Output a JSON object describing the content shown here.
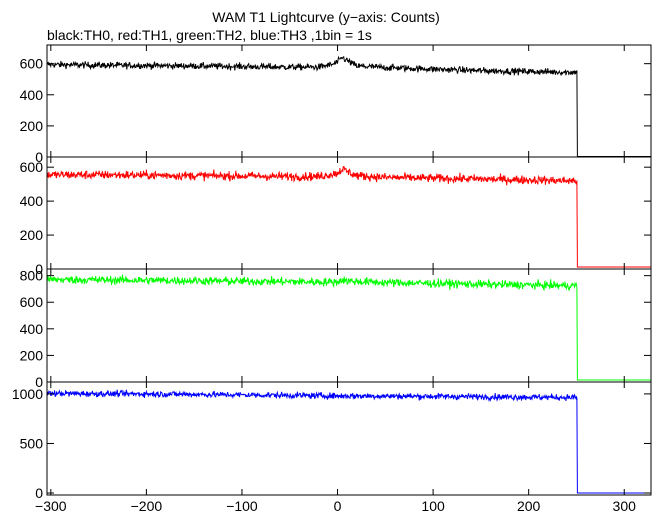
{
  "chart_data": {
    "type": "line",
    "title": "WAM T1 Lightcurve (y−axis: Counts)",
    "subtitle": "black:TH0, red:TH1, green:TH2, blue:TH3 ,1bin = 1s",
    "xlabel": "",
    "ylabel": "",
    "xlim": [
      -304,
      328
    ],
    "x_ticks": [
      -300,
      -200,
      -100,
      0,
      100,
      200,
      300
    ],
    "x_tick_labels": [
      "−300",
      "−200",
      "−100",
      "0",
      "100",
      "200",
      "300"
    ],
    "grid": false,
    "panels": [
      {
        "series": "TH0",
        "color": "#000000",
        "ylim": [
          0,
          720
        ],
        "y_ticks": [
          0,
          200,
          400,
          600
        ],
        "y_tick_labels": [
          "0",
          "200",
          "400",
          "600"
        ],
        "trend": {
          "x": [
            -304,
            -250,
            -200,
            -150,
            -100,
            -50,
            -20,
            -5,
            0,
            5,
            10,
            20,
            50,
            100,
            150,
            200,
            240,
            251
          ],
          "y": [
            595,
            590,
            588,
            585,
            582,
            578,
            578,
            595,
            610,
            640,
            620,
            585,
            575,
            565,
            555,
            550,
            545,
            545
          ]
        },
        "noise": 15,
        "drop_at": 251,
        "after_value": 3
      },
      {
        "series": "TH1",
        "color": "#ff0000",
        "ylim": [
          0,
          660
        ],
        "y_ticks": [
          0,
          200,
          400,
          600
        ],
        "y_tick_labels": [
          "0",
          "200",
          "400",
          "600"
        ],
        "trend": {
          "x": [
            -304,
            -250,
            -200,
            -150,
            -100,
            -50,
            -20,
            0,
            5,
            10,
            20,
            50,
            100,
            150,
            200,
            240,
            251
          ],
          "y": [
            555,
            555,
            553,
            550,
            548,
            545,
            545,
            565,
            590,
            575,
            550,
            540,
            535,
            530,
            525,
            520,
            520
          ]
        },
        "noise": 18,
        "drop_at": 251,
        "after_value": 12
      },
      {
        "series": "TH2",
        "color": "#00ff00",
        "ylim": [
          0,
          850
        ],
        "y_ticks": [
          0,
          200,
          400,
          600,
          800
        ],
        "y_tick_labels": [
          "0",
          "200",
          "400",
          "600",
          "800"
        ],
        "trend": {
          "x": [
            -304,
            -250,
            -200,
            -150,
            -100,
            -50,
            0,
            5,
            10,
            50,
            100,
            150,
            200,
            240,
            251
          ],
          "y": [
            770,
            768,
            765,
            762,
            758,
            755,
            752,
            770,
            760,
            748,
            742,
            735,
            730,
            725,
            725
          ]
        },
        "noise": 22,
        "drop_at": 251,
        "after_value": 15
      },
      {
        "series": "TH3",
        "color": "#0000ff",
        "ylim": [
          -20,
          1120
        ],
        "y_ticks": [
          0,
          500,
          1000
        ],
        "y_tick_labels": [
          "0",
          "500",
          "1000"
        ],
        "trend": {
          "x": [
            -304,
            -250,
            -200,
            -150,
            -100,
            -50,
            0,
            50,
            100,
            150,
            200,
            240,
            251
          ],
          "y": [
            1005,
            1002,
            1000,
            995,
            990,
            985,
            980,
            978,
            975,
            972,
            968,
            965,
            965
          ]
        },
        "noise": 22,
        "drop_at": 251,
        "after_value": 0
      }
    ]
  }
}
